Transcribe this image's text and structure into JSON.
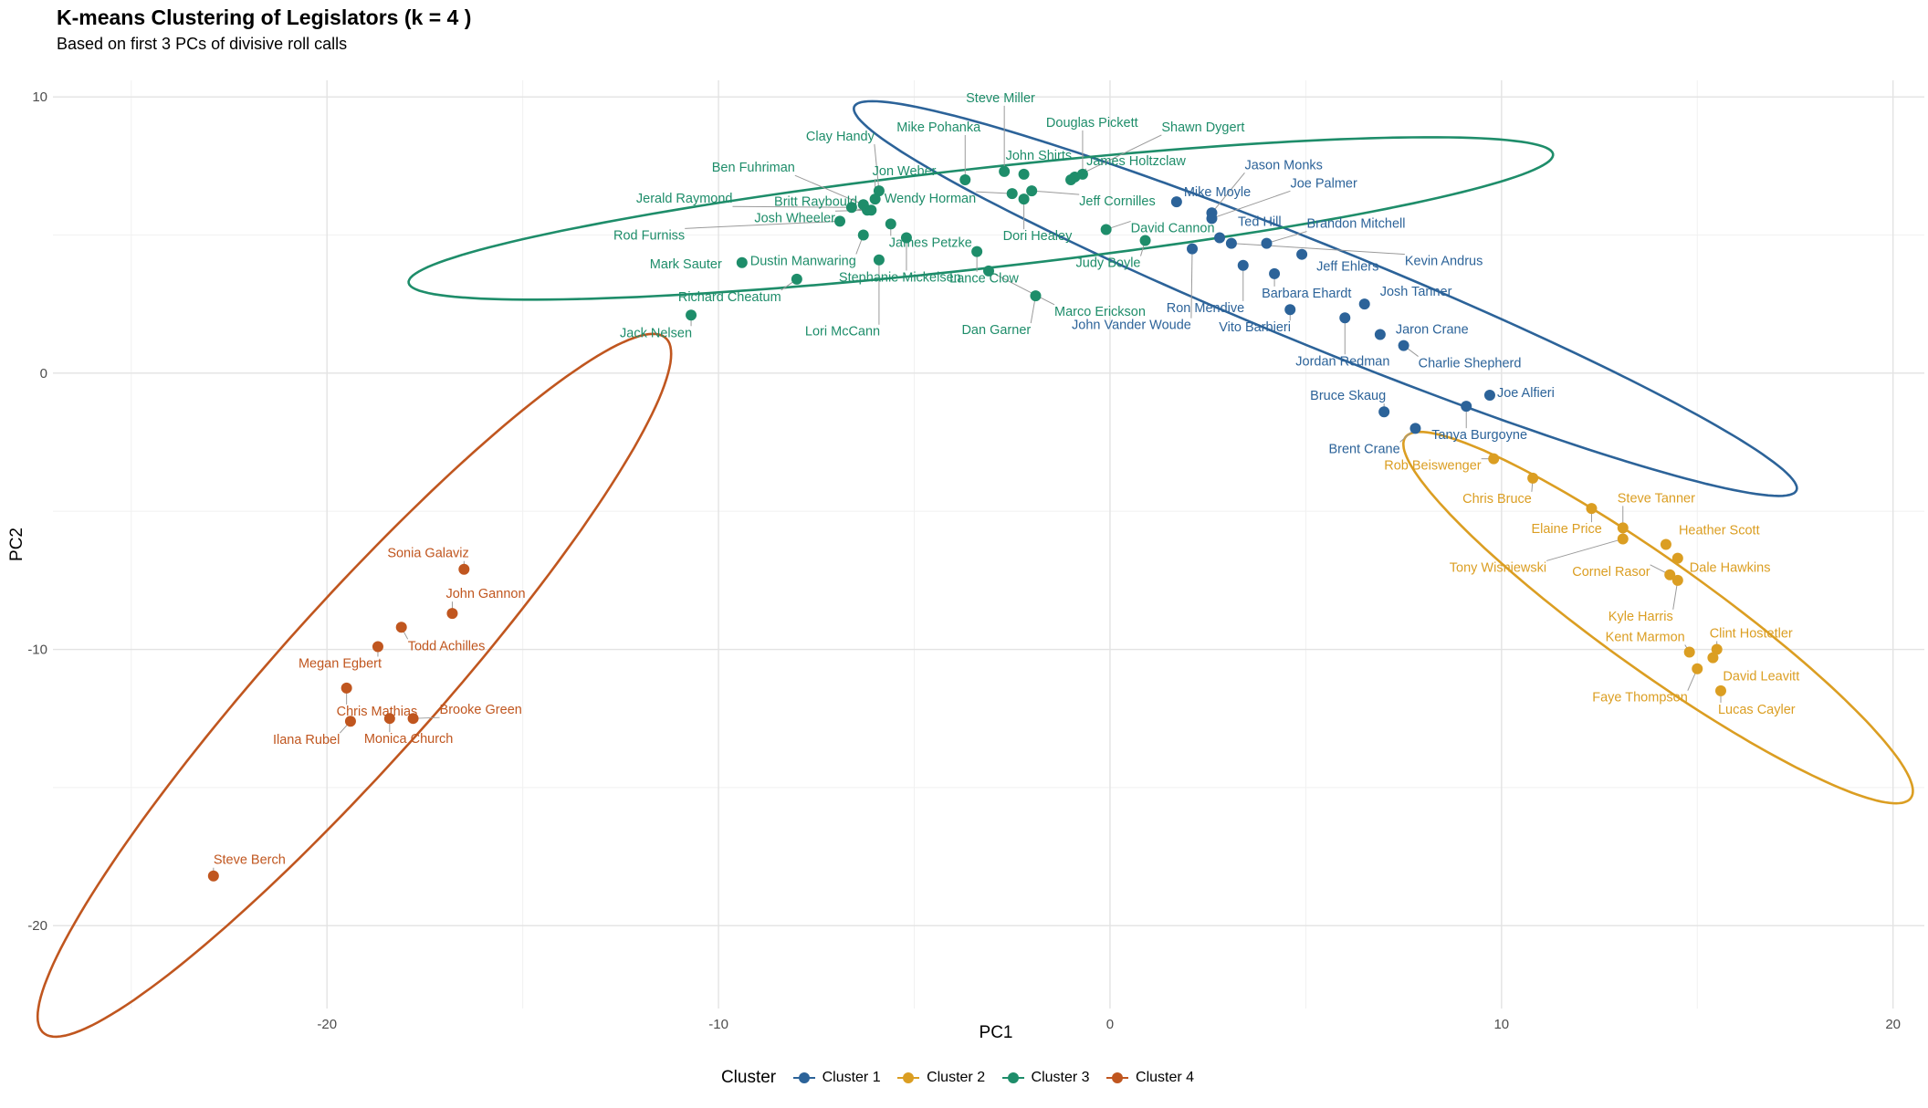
{
  "chart_data": {
    "type": "scatter",
    "title": "K-means Clustering of Legislators (k = 4 )",
    "subtitle": "Based on first 3 PCs of divisive roll calls",
    "xlabel": "PC1",
    "ylabel": "PC2",
    "xlim": [
      -27,
      20.8
    ],
    "ylim": [
      -23,
      10.6
    ],
    "x_ticks": [
      -20,
      -10,
      0,
      10,
      20
    ],
    "y_ticks": [
      -20,
      -10,
      0,
      10
    ],
    "grid": true,
    "legend": {
      "title": "Cluster",
      "position": "bottom",
      "entries": [
        "Cluster 1",
        "Cluster 2",
        "Cluster 3",
        "Cluster 4"
      ]
    },
    "colors": {
      "Cluster 1": "#2C6399",
      "Cluster 2": "#DB9E22",
      "Cluster 3": "#1E8D6A",
      "Cluster 4": "#C0561F"
    },
    "ellipses": [
      {
        "cluster": "Cluster 1",
        "cx": 5.5,
        "cy": 2.7,
        "a": 13.9,
        "b": 1.7,
        "angle_deg": -30.2
      },
      {
        "cluster": "Cluster 2",
        "cx": 14.0,
        "cy": -8.85,
        "a": 9.2,
        "b": 1.7,
        "angle_deg": -46
      },
      {
        "cluster": "Cluster 3",
        "cx": -3.3,
        "cy": 5.6,
        "a": 14.8,
        "b": 1.8,
        "angle_deg": 9.1
      },
      {
        "cluster": "Cluster 4",
        "cx": -19.3,
        "cy": -11.3,
        "a": 14.9,
        "b": 2.3,
        "angle_deg": 58.2
      }
    ],
    "points": [
      {
        "name": "Mike Moyle",
        "cluster": "Cluster 1",
        "x": 1.7,
        "y": 6.2
      },
      {
        "name": "Jason Monks",
        "cluster": "Cluster 1",
        "x": 2.6,
        "y": 5.8
      },
      {
        "name": "Joe Palmer",
        "cluster": "Cluster 1",
        "x": 2.6,
        "y": 5.6
      },
      {
        "name": "Ted Hill",
        "cluster": "Cluster 1",
        "x": 2.8,
        "y": 4.9
      },
      {
        "name": "Brandon Mitchell",
        "cluster": "Cluster 1",
        "x": 4.0,
        "y": 4.7
      },
      {
        "name": "Kevin Andrus",
        "cluster": "Cluster 1",
        "x": 3.1,
        "y": 4.7
      },
      {
        "name": "Jeff Ehlers",
        "cluster": "Cluster 1",
        "x": 4.9,
        "y": 4.3
      },
      {
        "name": "John Vander Woude",
        "cluster": "Cluster 1",
        "x": 2.1,
        "y": 4.5
      },
      {
        "name": "Ron Mendive",
        "cluster": "Cluster 1",
        "x": 3.4,
        "y": 3.9
      },
      {
        "name": "Barbara Ehardt",
        "cluster": "Cluster 1",
        "x": 4.2,
        "y": 3.6
      },
      {
        "name": "Josh Tanner",
        "cluster": "Cluster 1",
        "x": 6.5,
        "y": 2.5
      },
      {
        "name": "Vito Barbieri",
        "cluster": "Cluster 1",
        "x": 4.6,
        "y": 2.3
      },
      {
        "name": "Jordan Redman",
        "cluster": "Cluster 1",
        "x": 6.0,
        "y": 2.0
      },
      {
        "name": "Jaron Crane",
        "cluster": "Cluster 1",
        "x": 6.9,
        "y": 1.4
      },
      {
        "name": "Charlie Shepherd",
        "cluster": "Cluster 1",
        "x": 7.5,
        "y": 1.0
      },
      {
        "name": "Bruce Skaug",
        "cluster": "Cluster 1",
        "x": 7.0,
        "y": -1.4
      },
      {
        "name": "Joe Alfieri",
        "cluster": "Cluster 1",
        "x": 9.7,
        "y": -0.8
      },
      {
        "name": "Tanya Burgoyne",
        "cluster": "Cluster 1",
        "x": 9.1,
        "y": -1.2
      },
      {
        "name": "Brent Crane",
        "cluster": "Cluster 1",
        "x": 7.8,
        "y": -2.0
      },
      {
        "name": "Rob Beiswenger",
        "cluster": "Cluster 2",
        "x": 9.8,
        "y": -3.1
      },
      {
        "name": "Chris Bruce",
        "cluster": "Cluster 2",
        "x": 10.8,
        "y": -3.8
      },
      {
        "name": "Elaine Price",
        "cluster": "Cluster 2",
        "x": 12.3,
        "y": -4.9
      },
      {
        "name": "Steve Tanner",
        "cluster": "Cluster 2",
        "x": 13.1,
        "y": -5.6
      },
      {
        "name": "Tony Wisniewski",
        "cluster": "Cluster 2",
        "x": 13.1,
        "y": -6.0
      },
      {
        "name": "Heather Scott",
        "cluster": "Cluster 2",
        "x": 14.2,
        "y": -6.2
      },
      {
        "name": "Dale Hawkins",
        "cluster": "Cluster 2",
        "x": 14.5,
        "y": -6.7
      },
      {
        "name": "Cornel Rasor",
        "cluster": "Cluster 2",
        "x": 14.3,
        "y": -7.3
      },
      {
        "name": "Kyle Harris",
        "cluster": "Cluster 2",
        "x": 14.5,
        "y": -7.5
      },
      {
        "name": "Clint Hostetler",
        "cluster": "Cluster 2",
        "x": 15.5,
        "y": -10.0
      },
      {
        "name": "Kent Marmon",
        "cluster": "Cluster 2",
        "x": 14.8,
        "y": -10.1
      },
      {
        "name": "David Leavitt",
        "cluster": "Cluster 2",
        "x": 15.4,
        "y": -10.3
      },
      {
        "name": "Faye Thompson",
        "cluster": "Cluster 2",
        "x": 15.0,
        "y": -10.7
      },
      {
        "name": "Lucas Cayler",
        "cluster": "Cluster 2",
        "x": 15.6,
        "y": -11.5
      },
      {
        "name": "Steve Miller",
        "cluster": "Cluster 3",
        "x": -2.7,
        "y": 7.3
      },
      {
        "name": "Douglas Pickett",
        "cluster": "Cluster 3",
        "x": -0.7,
        "y": 7.2
      },
      {
        "name": "Shawn Dygert",
        "cluster": "Cluster 3",
        "x": -0.9,
        "y": 7.1
      },
      {
        "name": "Mike Pohanka",
        "cluster": "Cluster 3",
        "x": -3.7,
        "y": 7.0
      },
      {
        "name": "John Shirts",
        "cluster": "Cluster 3",
        "x": -2.2,
        "y": 7.2
      },
      {
        "name": "James Holtzclaw",
        "cluster": "Cluster 3",
        "x": -1.0,
        "y": 7.0
      },
      {
        "name": "Clay Handy",
        "cluster": "Cluster 3",
        "x": -5.9,
        "y": 6.6
      },
      {
        "name": "Jon Weber",
        "cluster": "Cluster 3",
        "x": -6.0,
        "y": 6.3
      },
      {
        "name": "Ben Fuhriman",
        "cluster": "Cluster 3",
        "x": -6.3,
        "y": 6.1
      },
      {
        "name": "Wendy Horman",
        "cluster": "Cluster 3",
        "x": -2.5,
        "y": 6.5
      },
      {
        "name": "Jeff Cornilles",
        "cluster": "Cluster 3",
        "x": -2.0,
        "y": 6.6
      },
      {
        "name": "Dori Healey",
        "cluster": "Cluster 3",
        "x": -2.2,
        "y": 6.3
      },
      {
        "name": "Britt Raybould",
        "cluster": "Cluster 3",
        "x": -6.2,
        "y": 5.9
      },
      {
        "name": "Jerald Raymond",
        "cluster": "Cluster 3",
        "x": -6.6,
        "y": 6.0
      },
      {
        "name": "Josh Wheeler",
        "cluster": "Cluster 3",
        "x": -6.1,
        "y": 5.9
      },
      {
        "name": "Rod Furniss",
        "cluster": "Cluster 3",
        "x": -6.9,
        "y": 5.5
      },
      {
        "name": "James Petzke",
        "cluster": "Cluster 3",
        "x": -5.6,
        "y": 5.4
      },
      {
        "name": "Dustin Manwaring",
        "cluster": "Cluster 3",
        "x": -6.3,
        "y": 5.0
      },
      {
        "name": "David Cannon",
        "cluster": "Cluster 3",
        "x": -0.1,
        "y": 5.2
      },
      {
        "name": "Judy Boyle",
        "cluster": "Cluster 3",
        "x": 0.9,
        "y": 4.8
      },
      {
        "name": "Stephanie Mickelsen",
        "cluster": "Cluster 3",
        "x": -5.2,
        "y": 4.9
      },
      {
        "name": "Mark Sauter",
        "cluster": "Cluster 3",
        "x": -9.4,
        "y": 4.0
      },
      {
        "name": "Lori McCann",
        "cluster": "Cluster 3",
        "x": -5.9,
        "y": 4.1
      },
      {
        "name": "Lance Clow",
        "cluster": "Cluster 3",
        "x": -3.4,
        "y": 4.4
      },
      {
        "name": "Marco Erickson",
        "cluster": "Cluster 3",
        "x": -3.1,
        "y": 3.7
      },
      {
        "name": "Richard Cheatum",
        "cluster": "Cluster 3",
        "x": -8.0,
        "y": 3.4
      },
      {
        "name": "Dan Garner",
        "cluster": "Cluster 3",
        "x": -1.9,
        "y": 2.8
      },
      {
        "name": "Jack Nelsen",
        "cluster": "Cluster 3",
        "x": -10.7,
        "y": 2.1
      },
      {
        "name": "Sonia Galaviz",
        "cluster": "Cluster 4",
        "x": -16.5,
        "y": -7.1
      },
      {
        "name": "John Gannon",
        "cluster": "Cluster 4",
        "x": -16.8,
        "y": -8.7
      },
      {
        "name": "Todd Achilles",
        "cluster": "Cluster 4",
        "x": -18.1,
        "y": -9.2
      },
      {
        "name": "Megan Egbert",
        "cluster": "Cluster 4",
        "x": -18.7,
        "y": -9.9
      },
      {
        "name": "Chris Mathias",
        "cluster": "Cluster 4",
        "x": -19.5,
        "y": -11.4
      },
      {
        "name": "Brooke Green",
        "cluster": "Cluster 4",
        "x": -17.8,
        "y": -12.5
      },
      {
        "name": "Monica Church",
        "cluster": "Cluster 4",
        "x": -18.4,
        "y": -12.5
      },
      {
        "name": "Ilana Rubel",
        "cluster": "Cluster 4",
        "x": -19.4,
        "y": -12.6
      },
      {
        "name": "Steve Berch",
        "cluster": "Cluster 4",
        "x": -22.9,
        "y": -18.2
      }
    ]
  }
}
